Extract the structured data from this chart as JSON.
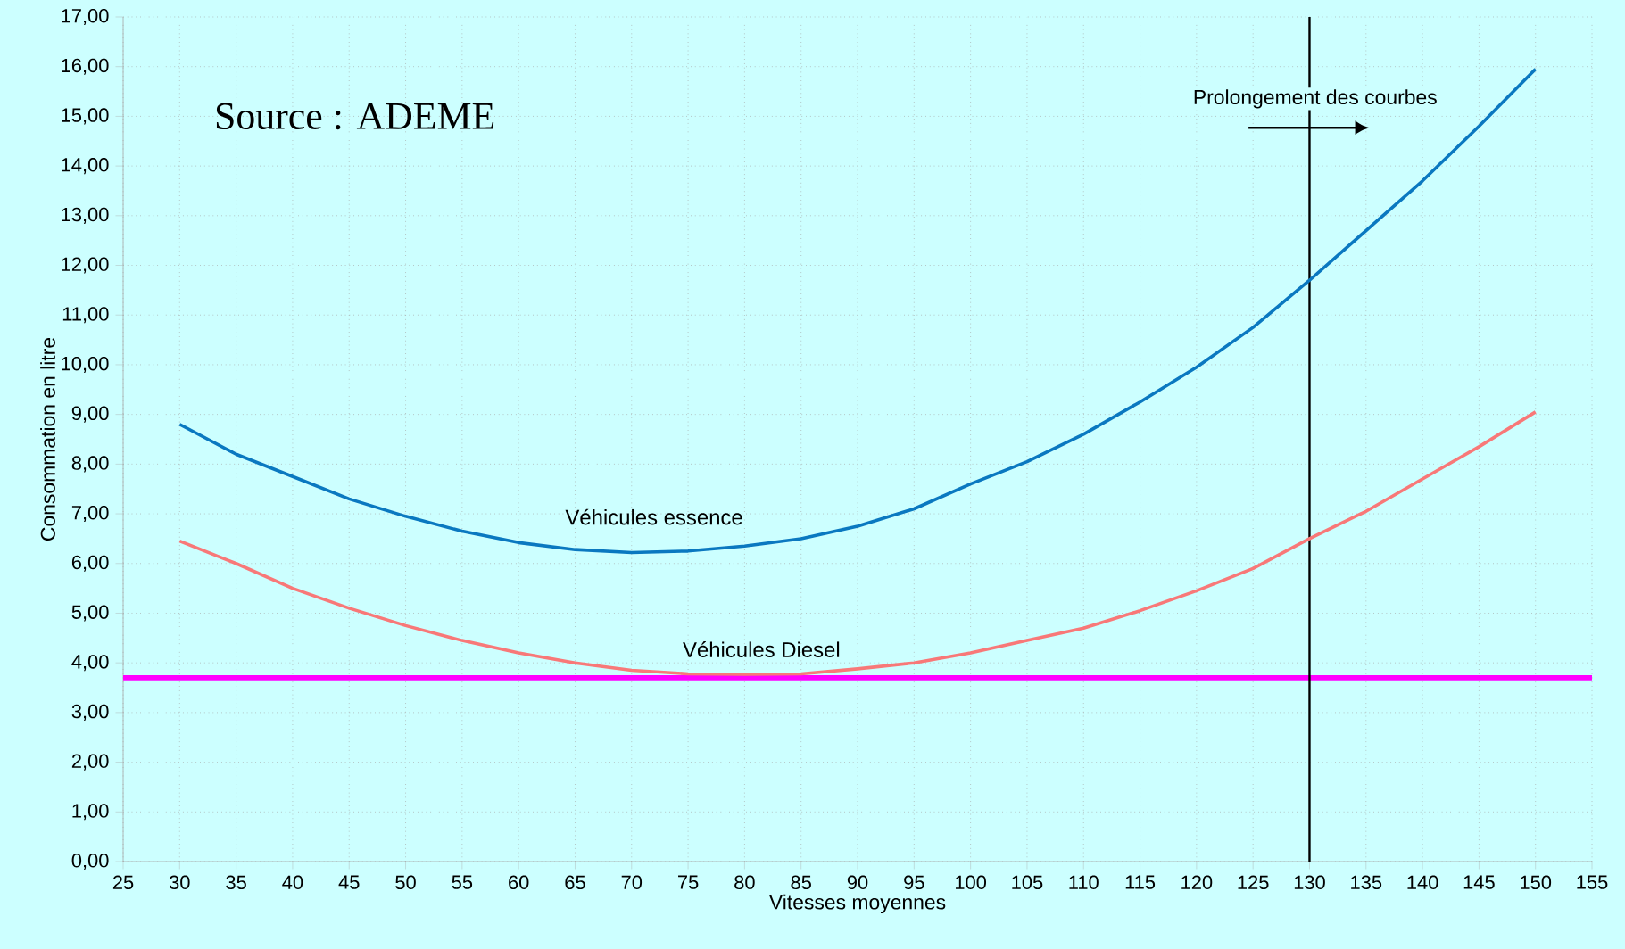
{
  "chart_data": {
    "type": "line",
    "xlabel": "Vitesses moyennes",
    "ylabel": "Consommation en litre",
    "x": [
      30,
      35,
      40,
      45,
      50,
      55,
      60,
      65,
      70,
      75,
      80,
      85,
      90,
      95,
      100,
      105,
      110,
      115,
      120,
      125,
      130,
      135,
      140,
      145,
      150
    ],
    "series": [
      {
        "name": "Véhicules essence",
        "color": "#0a78c0",
        "values": [
          8.8,
          8.2,
          7.75,
          7.3,
          6.95,
          6.65,
          6.42,
          6.28,
          6.22,
          6.25,
          6.35,
          6.5,
          6.75,
          7.1,
          7.6,
          8.05,
          8.6,
          9.25,
          9.95,
          10.75,
          11.7,
          12.7,
          13.7,
          14.8,
          15.95
        ]
      },
      {
        "name": "Véhicules Diesel",
        "color": "#f87878",
        "values": [
          6.45,
          6.0,
          5.5,
          5.1,
          4.75,
          4.45,
          4.2,
          4.0,
          3.85,
          3.78,
          3.77,
          3.78,
          3.88,
          4.0,
          4.2,
          4.45,
          4.7,
          5.05,
          5.45,
          5.9,
          6.5,
          7.05,
          7.7,
          8.35,
          9.05
        ]
      }
    ],
    "xlim": [
      25,
      155
    ],
    "xticks": [
      25,
      30,
      35,
      40,
      45,
      50,
      55,
      60,
      65,
      70,
      75,
      80,
      85,
      90,
      95,
      100,
      105,
      110,
      115,
      120,
      125,
      130,
      135,
      140,
      145,
      150,
      155
    ],
    "ylim": [
      0,
      17
    ],
    "yticks": [
      {
        "value": 0,
        "label": "0,00"
      },
      {
        "value": 1,
        "label": "1,00"
      },
      {
        "value": 2,
        "label": "2,00"
      },
      {
        "value": 3,
        "label": "3,00"
      },
      {
        "value": 4,
        "label": "4,00"
      },
      {
        "value": 5,
        "label": "5,00"
      },
      {
        "value": 6,
        "label": "6,00"
      },
      {
        "value": 7,
        "label": "7,00"
      },
      {
        "value": 8,
        "label": "8,00"
      },
      {
        "value": 9,
        "label": "9,00"
      },
      {
        "value": 10,
        "label": "10,00"
      },
      {
        "value": 11,
        "label": "11,00"
      },
      {
        "value": 12,
        "label": "12,00"
      },
      {
        "value": 13,
        "label": "13,00"
      },
      {
        "value": 14,
        "label": "14,00"
      },
      {
        "value": 15,
        "label": "15,00"
      },
      {
        "value": 16,
        "label": "16,00"
      },
      {
        "value": 17,
        "label": "17,00"
      }
    ],
    "ref_lines": [
      {
        "axis": "y",
        "value": 3.7,
        "color": "#ff00ff"
      },
      {
        "axis": "x",
        "value": 130,
        "color": "#000000"
      }
    ],
    "annotations": [
      "Source : ADEME",
      "Prolongement des courbes"
    ],
    "grid": true,
    "legend": false,
    "marker": "none",
    "line_style": "solid"
  }
}
